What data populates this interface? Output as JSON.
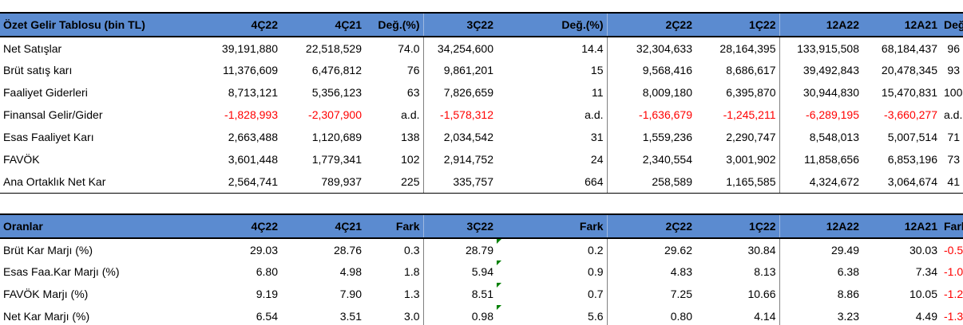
{
  "summary": {
    "headers": [
      "Özet Gelir Tablosu (bin TL)",
      "4Ç22",
      "4Ç21",
      "Değ.(%)",
      "3Ç22",
      "Değ.(%)",
      "2Ç22",
      "1Ç22",
      "12A22",
      "12A21",
      "Değ.(%)"
    ],
    "rows": [
      {
        "cells": [
          "Net Satışlar",
          "39,191,880",
          "22,518,529",
          "74.0",
          "34,254,600",
          "14.4",
          "32,304,633",
          "28,164,395",
          "133,915,508",
          "68,184,437",
          "96"
        ],
        "negative": false
      },
      {
        "cells": [
          "Brüt satış karı",
          "11,376,609",
          "6,476,812",
          "76",
          "9,861,201",
          "15",
          "9,568,416",
          "8,686,617",
          "39,492,843",
          "20,478,345",
          "93"
        ],
        "negative": false
      },
      {
        "cells": [
          "Faaliyet Giderleri",
          "8,713,121",
          "5,356,123",
          "63",
          "7,826,659",
          "11",
          "8,009,180",
          "6,395,870",
          "30,944,830",
          "15,470,831",
          "100"
        ],
        "negative": false
      },
      {
        "cells": [
          "Finansal Gelir/Gider",
          "-1,828,993",
          "-2,307,900",
          "a.d.",
          "-1,578,312",
          "a.d.",
          "-1,636,679",
          "-1,245,211",
          "-6,289,195",
          "-3,660,277",
          "a.d."
        ],
        "negative": true
      },
      {
        "cells": [
          "Esas Faaliyet Karı",
          "2,663,488",
          "1,120,689",
          "138",
          "2,034,542",
          "31",
          "1,559,236",
          "2,290,747",
          "8,548,013",
          "5,007,514",
          "71"
        ],
        "negative": false
      },
      {
        "cells": [
          "FAVÖK",
          "3,601,448",
          "1,779,341",
          "102",
          "2,914,752",
          "24",
          "2,340,554",
          "3,001,902",
          "11,858,656",
          "6,853,196",
          "73"
        ],
        "negative": false
      },
      {
        "cells": [
          "Ana Ortaklık Net Kar",
          "2,564,741",
          "789,937",
          "225",
          "335,757",
          "664",
          "258,589",
          "1,165,585",
          "4,324,672",
          "3,064,674",
          "41"
        ],
        "negative": false
      }
    ]
  },
  "ratios": {
    "headers": [
      "Oranlar",
      "4Ç22",
      "4Ç21",
      "Fark",
      "3Ç22",
      "Fark",
      "2Ç22",
      "1Ç22",
      "12A22",
      "12A21",
      "Fark"
    ],
    "rows": [
      {
        "cells": [
          "Brüt Kar Marjı (%)",
          "29.03",
          "28.76",
          "0.3",
          "28.79",
          "0.2",
          "29.62",
          "30.84",
          "29.49",
          "30.03",
          "-0.5"
        ]
      },
      {
        "cells": [
          "Esas Faa.Kar Marjı (%)",
          "6.80",
          "4.98",
          "1.8",
          "5.94",
          "0.9",
          "4.83",
          "8.13",
          "6.38",
          "7.34",
          "-1.0"
        ]
      },
      {
        "cells": [
          "FAVÖK Marjı (%)",
          "9.19",
          "7.90",
          "1.3",
          "8.51",
          "0.7",
          "7.25",
          "10.66",
          "8.86",
          "10.05",
          "-1.2"
        ]
      },
      {
        "cells": [
          "Net Kar Marjı (%)",
          "6.54",
          "3.51",
          "3.0",
          "0.98",
          "5.6",
          "0.80",
          "4.14",
          "3.23",
          "4.49",
          "-1.3"
        ]
      }
    ]
  },
  "colors": {
    "header_bg": "#5b8bd0",
    "negative": "#ff0000",
    "comment_marker": "#008000"
  }
}
